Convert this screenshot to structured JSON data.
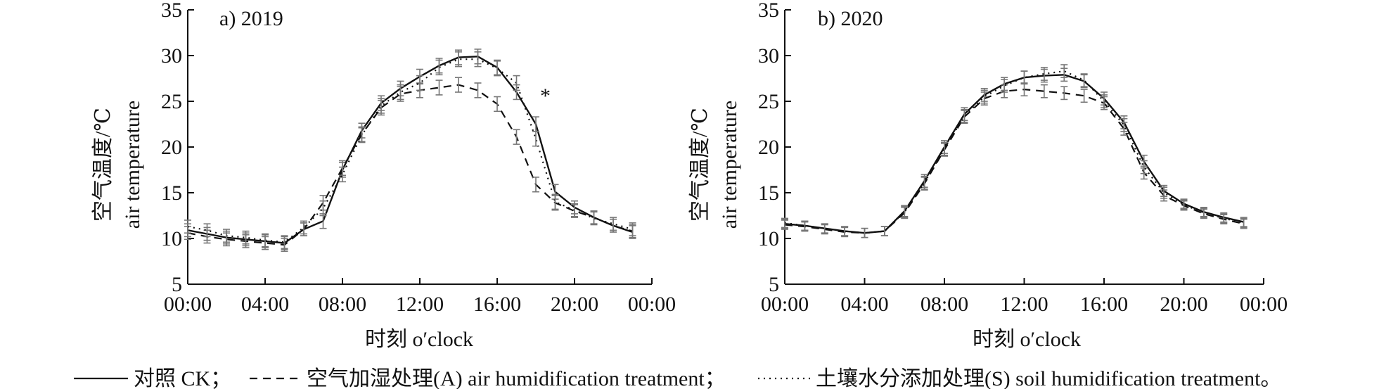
{
  "chart_data": [
    {
      "type": "line",
      "title": "a) 2019",
      "xlabel": "时刻 o′clock",
      "ylabel_cn": "空气温度/℃",
      "ylabel_en": "air temperature",
      "xticks": [
        "00:00",
        "04:00",
        "08:00",
        "12:00",
        "16:00",
        "20:00",
        "00:00"
      ],
      "yticks": [
        5,
        10,
        15,
        20,
        25,
        30,
        35
      ],
      "xlim": [
        0,
        24
      ],
      "ylim": [
        5,
        35
      ],
      "annotation": {
        "text": "*",
        "x": 18,
        "y": 25.6
      },
      "x": [
        0,
        1,
        2,
        3,
        4,
        5,
        6,
        7,
        8,
        9,
        10,
        11,
        12,
        13,
        14,
        15,
        16,
        17,
        18,
        19,
        20,
        21,
        22,
        23
      ],
      "series": [
        {
          "key": "ck",
          "style": "solid",
          "values": [
            10.9,
            10.5,
            10.1,
            9.9,
            9.7,
            9.5,
            11.0,
            11.9,
            17.5,
            21.8,
            24.8,
            26.4,
            27.7,
            28.9,
            29.8,
            29.9,
            28.7,
            26.0,
            22.5,
            15.1,
            13.4,
            12.3,
            11.4,
            10.7
          ],
          "err": [
            0.7,
            0.7,
            0.7,
            0.7,
            0.7,
            0.7,
            0.7,
            0.8,
            0.8,
            0.8,
            0.8,
            0.8,
            0.8,
            0.8,
            0.8,
            0.8,
            0.8,
            0.8,
            0.8,
            0.8,
            0.7,
            0.7,
            0.7,
            0.7
          ]
        },
        {
          "key": "air",
          "style": "dashed",
          "values": [
            10.6,
            10.2,
            9.9,
            9.7,
            9.5,
            9.3,
            11.0,
            13.9,
            17.7,
            21.4,
            24.3,
            25.8,
            26.2,
            26.5,
            26.8,
            26.2,
            24.7,
            21.1,
            15.9,
            13.9,
            13.0,
            12.3,
            11.4,
            10.8
          ],
          "err": [
            0.7,
            0.7,
            0.7,
            0.7,
            0.7,
            0.7,
            0.7,
            0.8,
            0.8,
            0.8,
            0.8,
            0.8,
            0.8,
            0.8,
            0.8,
            0.8,
            0.8,
            0.8,
            0.8,
            0.8,
            0.7,
            0.7,
            0.7,
            0.7
          ]
        },
        {
          "key": "soil",
          "style": "dotted",
          "values": [
            11.3,
            10.9,
            10.3,
            10.1,
            9.8,
            9.6,
            11.2,
            13.3,
            17.0,
            21.3,
            24.5,
            26.0,
            27.0,
            28.7,
            29.6,
            29.6,
            28.6,
            27.0,
            20.9,
            14.0,
            13.1,
            12.2,
            11.6,
            11.0
          ],
          "err": [
            0.7,
            0.7,
            0.7,
            0.7,
            0.7,
            0.7,
            0.7,
            0.8,
            0.8,
            0.8,
            0.8,
            0.8,
            0.8,
            0.8,
            0.8,
            0.8,
            0.8,
            0.8,
            0.8,
            0.8,
            0.7,
            0.7,
            0.7,
            0.7
          ]
        }
      ]
    },
    {
      "type": "line",
      "title": "b) 2020",
      "xlabel": "时刻 o′clock",
      "ylabel_cn": "空气温度/℃",
      "ylabel_en": "air temperature",
      "xticks": [
        "00:00",
        "04:00",
        "08:00",
        "12:00",
        "16:00",
        "20:00",
        "00:00"
      ],
      "yticks": [
        5,
        10,
        15,
        20,
        25,
        30,
        35
      ],
      "xlim": [
        0,
        24
      ],
      "ylim": [
        5,
        35
      ],
      "x": [
        0,
        1,
        2,
        3,
        4,
        5,
        6,
        7,
        8,
        9,
        10,
        11,
        12,
        13,
        14,
        15,
        16,
        17,
        18,
        19,
        20,
        21,
        22,
        23
      ],
      "series": [
        {
          "key": "ck",
          "style": "solid",
          "values": [
            11.6,
            11.4,
            11.1,
            10.8,
            10.6,
            10.8,
            13.0,
            16.3,
            20.0,
            23.6,
            25.7,
            26.9,
            27.6,
            27.8,
            27.9,
            27.2,
            25.3,
            22.7,
            18.4,
            15.2,
            13.8,
            12.9,
            12.3,
            11.8
          ],
          "err": [
            0.5,
            0.5,
            0.5,
            0.5,
            0.5,
            0.5,
            0.6,
            0.7,
            0.7,
            0.7,
            0.7,
            0.7,
            0.7,
            0.7,
            0.7,
            0.7,
            0.7,
            0.7,
            0.7,
            0.6,
            0.5,
            0.5,
            0.5,
            0.5
          ]
        },
        {
          "key": "air",
          "style": "dashed",
          "values": [
            11.5,
            11.3,
            11.0,
            10.7,
            10.6,
            10.8,
            12.8,
            16.0,
            19.7,
            23.3,
            25.3,
            26.1,
            26.3,
            26.1,
            25.9,
            25.6,
            24.8,
            22.0,
            17.2,
            14.7,
            13.6,
            12.7,
            12.1,
            11.6
          ],
          "err": [
            0.5,
            0.5,
            0.5,
            0.5,
            0.5,
            0.5,
            0.6,
            0.7,
            0.7,
            0.7,
            0.7,
            0.7,
            0.7,
            0.7,
            0.7,
            0.7,
            0.7,
            0.7,
            0.7,
            0.6,
            0.5,
            0.5,
            0.5,
            0.5
          ]
        },
        {
          "key": "soil",
          "style": "dotted",
          "values": [
            11.7,
            11.4,
            11.1,
            10.8,
            10.6,
            10.8,
            12.9,
            16.1,
            19.8,
            23.4,
            25.5,
            26.7,
            27.6,
            28.0,
            28.3,
            27.3,
            25.0,
            22.4,
            17.8,
            15.0,
            13.7,
            12.8,
            12.2,
            11.7
          ],
          "err": [
            0.5,
            0.5,
            0.5,
            0.5,
            0.5,
            0.5,
            0.6,
            0.7,
            0.7,
            0.7,
            0.7,
            0.7,
            0.7,
            0.7,
            0.7,
            0.7,
            0.7,
            0.7,
            0.7,
            0.6,
            0.5,
            0.5,
            0.5,
            0.5
          ]
        }
      ]
    }
  ],
  "legend": {
    "placement": "bottom",
    "items": [
      {
        "key": "ck",
        "style": "solid",
        "label": "对照 CK；"
      },
      {
        "key": "air",
        "style": "dashed",
        "label": "空气加湿处理(A) air humidification treatment；"
      },
      {
        "key": "soil",
        "style": "dotted",
        "label": "土壤水分添加处理(S) soil humidification treatment。"
      }
    ]
  }
}
